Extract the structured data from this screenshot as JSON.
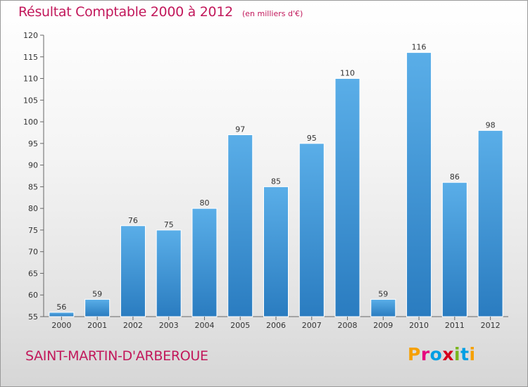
{
  "header": {
    "title": "Résultat Comptable 2000 à 2012",
    "unit": "(en milliers d'€)"
  },
  "footer": {
    "place": "SAINT-MARTIN-D'ARBEROUE",
    "logo_letters": [
      "P",
      "r",
      "o",
      "x",
      "i",
      "t",
      "i"
    ],
    "logo_colors": [
      "#f6a000",
      "#e6007e",
      "#009fe3",
      "#d6001c",
      "#7ab51d",
      "#009fe3",
      "#f6a000"
    ]
  },
  "colors": {
    "accent": "#c2185b",
    "bar_top": "#5aaee8",
    "bar_bottom": "#2a7cc0"
  },
  "chart_data": {
    "type": "bar",
    "title": "Résultat Comptable 2000 à 2012",
    "xlabel": "",
    "ylabel": "",
    "categories": [
      "2000",
      "2001",
      "2002",
      "2003",
      "2004",
      "2005",
      "2006",
      "2007",
      "2008",
      "2009",
      "2010",
      "2011",
      "2012"
    ],
    "values": [
      56,
      59,
      76,
      75,
      80,
      97,
      85,
      95,
      110,
      59,
      116,
      86,
      98
    ],
    "ylim": [
      55,
      120
    ],
    "yticks": [
      55,
      60,
      65,
      70,
      75,
      80,
      85,
      90,
      95,
      100,
      105,
      110,
      115,
      120
    ],
    "grid": false
  }
}
